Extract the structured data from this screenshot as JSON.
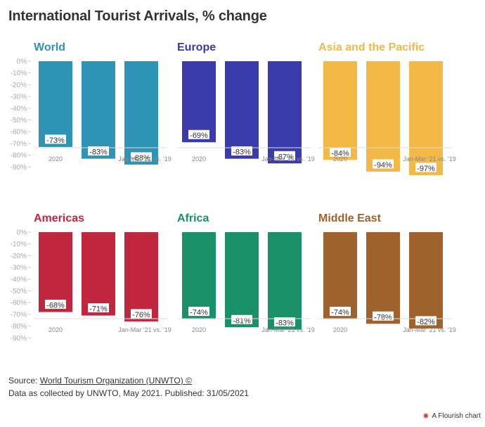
{
  "title": "International Tourist Arrivals, % change",
  "chart_data": [
    {
      "type": "bar",
      "title": "World",
      "color": "#2e93b5",
      "categories": [
        "2020",
        "",
        "Jan-Mar '21 vs. '19"
      ],
      "values": [
        -73,
        -83,
        -88
      ],
      "value_labels": [
        "-73%",
        "-83%",
        "-88%"
      ],
      "ylim": [
        -95,
        0
      ],
      "yticks": [
        0,
        -10,
        -20,
        -30,
        -40,
        -50,
        -60,
        -70,
        -80,
        -90
      ],
      "ytick_labels": [
        "0%",
        "-10%",
        "-20%",
        "-30%",
        "-40%",
        "-50%",
        "-60%",
        "-70%",
        "-80%",
        "-90%"
      ]
    },
    {
      "type": "bar",
      "title": "Europe",
      "color": "#3a3aaa",
      "categories": [
        "2020",
        "",
        "Jan-Mar '21 vs. '19"
      ],
      "values": [
        -69,
        -83,
        -87
      ],
      "value_labels": [
        "-69%",
        "-83%",
        "-87%"
      ],
      "ylim": [
        -95,
        0
      ]
    },
    {
      "type": "bar",
      "title": "Asia and the Pacific",
      "color": "#f2b947",
      "categories": [
        "2020",
        "",
        "Jan-Mar '21 vs. '19"
      ],
      "values": [
        -84,
        -94,
        -97
      ],
      "value_labels": [
        "-84%",
        "-94%",
        "-97%"
      ],
      "ylim": [
        -95,
        0
      ]
    },
    {
      "type": "bar",
      "title": "Americas",
      "color": "#c0273f",
      "categories": [
        "2020",
        "",
        "Jan-Mar '21 vs. '19"
      ],
      "values": [
        -68,
        -71,
        -76
      ],
      "value_labels": [
        "-68%",
        "-71%",
        "-76%"
      ],
      "ylim": [
        -95,
        0
      ],
      "yticks": [
        0,
        -10,
        -20,
        -30,
        -40,
        -50,
        -60,
        -70,
        -80,
        -90
      ],
      "ytick_labels": [
        "0%",
        "-10%",
        "-20%",
        "-30%",
        "-40%",
        "-50%",
        "-60%",
        "-70%",
        "-80%",
        "-90%"
      ]
    },
    {
      "type": "bar",
      "title": "Africa",
      "color": "#1a9068",
      "categories": [
        "2020",
        "",
        "Jan-Mar '21 vs. '19"
      ],
      "values": [
        -74,
        -81,
        -83
      ],
      "value_labels": [
        "-74%",
        "-81%",
        "-83%"
      ],
      "ylim": [
        -95,
        0
      ]
    },
    {
      "type": "bar",
      "title": "Middle East",
      "color": "#a0622d",
      "categories": [
        "2020",
        "",
        "Jan-Mar '21 vs. '19"
      ],
      "values": [
        -74,
        -78,
        -82
      ],
      "value_labels": [
        "-74%",
        "-78%",
        "-82%"
      ],
      "ylim": [
        -95,
        0
      ]
    }
  ],
  "footer": {
    "source_prefix": "Source: ",
    "source_link": "Source: World Tourism Organization (UNWTO) ©",
    "note": "Data as collected by UNWTO, May 2021. Published: 31/05/2021"
  },
  "credit": {
    "icon": "flourish-icon",
    "text": "A Flourish chart"
  }
}
